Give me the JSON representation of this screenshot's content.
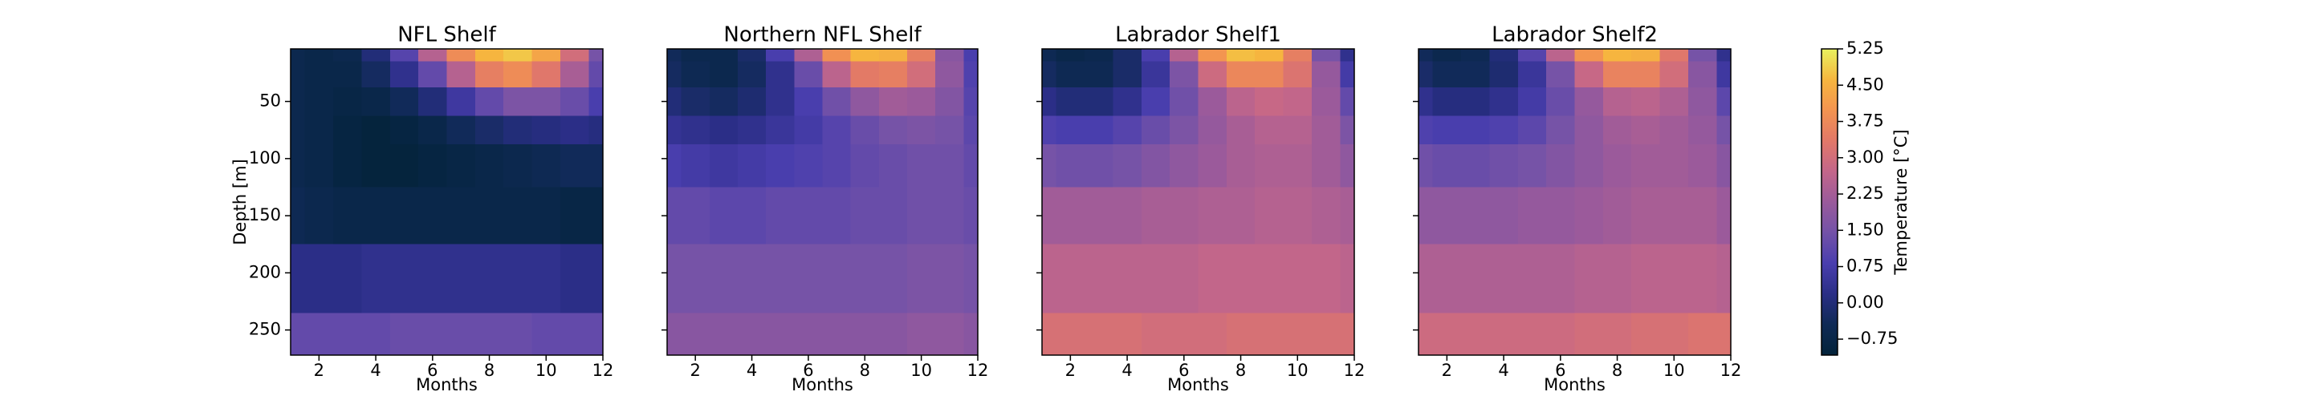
{
  "chart_data": [
    {
      "type": "heatmap",
      "title": "NFL Shelf",
      "xlabel": "Months",
      "ylabel": "Depth [m]",
      "x": [
        1,
        2,
        3,
        4,
        5,
        6,
        7,
        8,
        9,
        10,
        11,
        12
      ],
      "y": [
        5,
        25,
        50,
        75,
        100,
        150,
        200,
        270
      ],
      "values": [
        [
          -0.6,
          -0.7,
          -0.6,
          0.0,
          1.0,
          2.5,
          3.8,
          4.6,
          4.8,
          4.3,
          3.0,
          1.5
        ],
        [
          -0.6,
          -0.7,
          -0.7,
          -0.3,
          0.3,
          1.2,
          2.5,
          3.5,
          3.8,
          3.3,
          2.3,
          1.2
        ],
        [
          -0.6,
          -0.7,
          -0.8,
          -0.7,
          -0.4,
          0.0,
          0.6,
          1.2,
          1.6,
          1.6,
          1.3,
          0.8
        ],
        [
          -0.6,
          -0.7,
          -0.9,
          -1.0,
          -0.9,
          -0.7,
          -0.4,
          -0.2,
          0.0,
          0.1,
          0.2,
          0.1
        ],
        [
          -0.6,
          -0.7,
          -0.9,
          -1.0,
          -1.0,
          -0.9,
          -0.8,
          -0.7,
          -0.6,
          -0.5,
          -0.4,
          -0.4
        ],
        [
          -0.5,
          -0.6,
          -0.7,
          -0.7,
          -0.7,
          -0.7,
          -0.7,
          -0.7,
          -0.7,
          -0.7,
          -0.8,
          -0.8
        ],
        [
          0.2,
          0.2,
          0.2,
          0.3,
          0.3,
          0.3,
          0.3,
          0.3,
          0.3,
          0.3,
          0.2,
          0.2
        ],
        [
          1.2,
          1.2,
          1.2,
          1.2,
          1.3,
          1.3,
          1.3,
          1.3,
          1.3,
          1.2,
          1.2,
          1.2
        ]
      ],
      "xlim": [
        1,
        12
      ],
      "xticks": [
        2,
        4,
        6,
        8,
        10,
        12
      ],
      "ylim": [
        4,
        272
      ],
      "y_inverted": true,
      "yticks": [
        50,
        100,
        150,
        200,
        250
      ]
    },
    {
      "type": "heatmap",
      "title": "Northern NFL Shelf",
      "xlabel": "Months",
      "x": [
        1,
        2,
        3,
        4,
        5,
        6,
        7,
        8,
        9,
        10,
        11,
        12
      ],
      "y": [
        5,
        25,
        50,
        75,
        100,
        150,
        200,
        270
      ],
      "values": [
        [
          -0.4,
          -0.6,
          -0.6,
          -0.2,
          0.8,
          2.4,
          3.9,
          4.6,
          4.5,
          3.5,
          1.8,
          0.8
        ],
        [
          -0.3,
          -0.5,
          -0.6,
          -0.3,
          0.3,
          1.3,
          2.6,
          3.4,
          3.5,
          3.0,
          1.9,
          0.9
        ],
        [
          0.0,
          -0.2,
          -0.3,
          -0.1,
          0.3,
          0.8,
          1.4,
          1.9,
          2.2,
          2.1,
          1.7,
          1.0
        ],
        [
          0.4,
          0.3,
          0.2,
          0.3,
          0.5,
          0.7,
          1.0,
          1.3,
          1.5,
          1.6,
          1.5,
          1.1
        ],
        [
          0.8,
          0.7,
          0.6,
          0.7,
          0.8,
          0.9,
          1.0,
          1.2,
          1.3,
          1.4,
          1.4,
          1.2
        ],
        [
          1.2,
          1.2,
          1.1,
          1.1,
          1.2,
          1.2,
          1.2,
          1.3,
          1.3,
          1.4,
          1.4,
          1.3
        ],
        [
          1.5,
          1.5,
          1.5,
          1.5,
          1.5,
          1.5,
          1.5,
          1.5,
          1.5,
          1.6,
          1.6,
          1.5
        ],
        [
          1.8,
          1.8,
          1.8,
          1.8,
          1.8,
          1.8,
          1.8,
          1.8,
          1.8,
          1.9,
          1.9,
          1.8
        ]
      ],
      "xlim": [
        1,
        12
      ],
      "xticks": [
        2,
        4,
        6,
        8,
        10,
        12
      ],
      "ylim": [
        4,
        272
      ],
      "y_inverted": true,
      "yticks": [
        50,
        100,
        150,
        200,
        250
      ]
    },
    {
      "type": "heatmap",
      "title": "Labrador Shelf1",
      "xlabel": "Months",
      "x": [
        1,
        2,
        3,
        4,
        5,
        6,
        7,
        8,
        9,
        10,
        11,
        12
      ],
      "y": [
        5,
        25,
        50,
        75,
        100,
        150,
        200,
        270
      ],
      "values": [
        [
          -0.5,
          -0.7,
          -0.6,
          -0.2,
          0.8,
          2.5,
          4.0,
          4.7,
          4.6,
          3.5,
          1.5,
          0.3
        ],
        [
          -0.3,
          -0.5,
          -0.5,
          -0.2,
          0.5,
          1.6,
          2.9,
          3.7,
          3.7,
          3.2,
          2.0,
          0.7
        ],
        [
          0.2,
          0.0,
          0.0,
          0.3,
          0.8,
          1.4,
          2.1,
          2.6,
          2.8,
          2.7,
          2.1,
          1.2
        ],
        [
          0.9,
          0.8,
          0.8,
          1.0,
          1.3,
          1.6,
          2.0,
          2.3,
          2.5,
          2.5,
          2.2,
          1.6
        ],
        [
          1.5,
          1.4,
          1.4,
          1.5,
          1.7,
          1.9,
          2.1,
          2.3,
          2.4,
          2.4,
          2.2,
          1.9
        ],
        [
          2.2,
          2.2,
          2.2,
          2.2,
          2.3,
          2.3,
          2.4,
          2.4,
          2.5,
          2.5,
          2.4,
          2.3
        ],
        [
          2.6,
          2.6,
          2.6,
          2.6,
          2.6,
          2.6,
          2.7,
          2.7,
          2.7,
          2.7,
          2.7,
          2.6
        ],
        [
          3.1,
          3.1,
          3.1,
          3.1,
          3.0,
          3.0,
          3.0,
          3.1,
          3.1,
          3.1,
          3.1,
          3.1
        ]
      ],
      "xlim": [
        1,
        12
      ],
      "xticks": [
        2,
        4,
        6,
        8,
        10,
        12
      ],
      "ylim": [
        4,
        272
      ],
      "y_inverted": true,
      "yticks": [
        50,
        100,
        150,
        200,
        250
      ]
    },
    {
      "type": "heatmap",
      "title": "Labrador Shelf2",
      "xlabel": "Months",
      "x": [
        1,
        2,
        3,
        4,
        5,
        6,
        7,
        8,
        9,
        10,
        11,
        12
      ],
      "y": [
        5,
        25,
        50,
        75,
        100,
        150,
        200,
        270
      ],
      "values": [
        [
          -0.4,
          -0.6,
          -0.5,
          0.0,
          1.0,
          2.6,
          4.0,
          4.6,
          4.5,
          3.3,
          1.5,
          0.3
        ],
        [
          -0.2,
          -0.4,
          -0.4,
          -0.1,
          0.5,
          1.5,
          2.8,
          3.6,
          3.6,
          3.0,
          1.8,
          0.6
        ],
        [
          0.3,
          0.1,
          0.1,
          0.3,
          0.7,
          1.3,
          2.0,
          2.5,
          2.6,
          2.4,
          1.9,
          1.1
        ],
        [
          0.9,
          0.8,
          0.8,
          0.9,
          1.1,
          1.5,
          1.9,
          2.2,
          2.3,
          2.2,
          2.0,
          1.5
        ],
        [
          1.4,
          1.3,
          1.3,
          1.4,
          1.5,
          1.7,
          1.9,
          2.1,
          2.2,
          2.2,
          2.1,
          1.8
        ],
        [
          1.9,
          1.9,
          1.9,
          1.9,
          2.0,
          2.0,
          2.1,
          2.2,
          2.3,
          2.3,
          2.3,
          2.1
        ],
        [
          2.4,
          2.4,
          2.4,
          2.4,
          2.4,
          2.4,
          2.5,
          2.5,
          2.6,
          2.6,
          2.6,
          2.5
        ],
        [
          2.9,
          2.9,
          2.9,
          2.9,
          2.9,
          2.9,
          3.0,
          3.0,
          3.1,
          3.1,
          3.2,
          3.2
        ]
      ],
      "xlim": [
        1,
        12
      ],
      "xticks": [
        2,
        4,
        6,
        8,
        10,
        12
      ],
      "ylim": [
        4,
        272
      ],
      "y_inverted": true,
      "yticks": [
        50,
        100,
        150,
        200,
        250
      ]
    },
    {
      "type": "colorbar",
      "label": "Temperature [°C]",
      "ylim": [
        -1.08,
        5.25
      ],
      "yticks": [
        {
          "value": -0.75,
          "label": "−0.75"
        },
        {
          "value": 0,
          "label": "0.00"
        },
        0.75,
        {
          "value": 1.5,
          "label": "1.50"
        },
        2.25,
        {
          "value": 3,
          "label": "3.00"
        },
        3.75,
        {
          "value": 4.5,
          "label": "4.50"
        },
        5.25
      ],
      "colormap": [
        "#03233a",
        "#0f2a55",
        "#2a2e86",
        "#4a3eae",
        "#7352a8",
        "#9a5a9b",
        "#c3668a",
        "#e27868",
        "#f39450",
        "#f6b63f",
        "#e9f25f"
      ]
    }
  ]
}
